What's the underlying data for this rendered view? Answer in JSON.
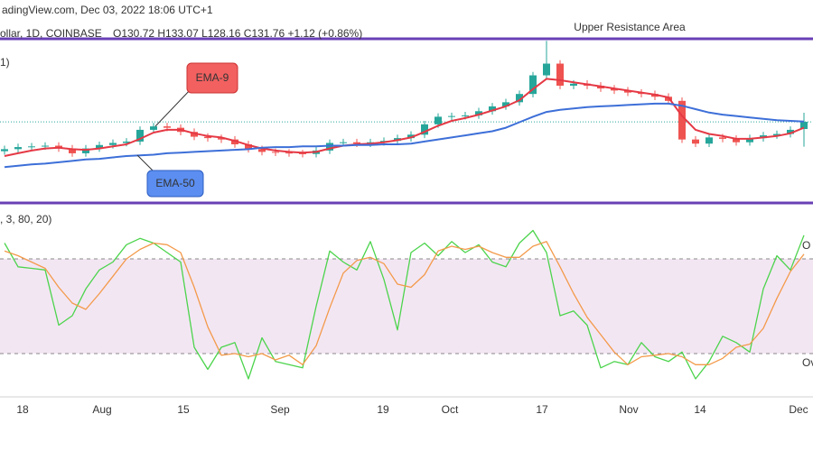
{
  "header": {
    "source": "adingView.com, Dec 03, 2022 18:06 UTC+1",
    "symbol": "ollar, 1D, COINBASE",
    "ohlc": "O130.72  H133.07  L128.16  C131.76  +1.12 (+0.86%)"
  },
  "chart_data": [
    {
      "type": "candlestick",
      "legend_text": "1)",
      "annotations": {
        "resistance": "Upper Resistance Area",
        "ema9": "EMA-9",
        "ema50": "EMA-50"
      },
      "ylim": [
        120,
        143.8
      ],
      "up_color": "#26a69a",
      "down_color": "#ef5350",
      "last_price": 131.76,
      "candles": {
        "open": [
          127.5,
          127.8,
          128.1,
          128.2,
          128.3,
          127.9,
          127.2,
          127.9,
          128.4,
          128.7,
          128.9,
          130.6,
          131.1,
          130.9,
          130.3,
          129.6,
          129.4,
          129.2,
          128.5,
          127.8,
          127.4,
          127.3,
          127.2,
          127.1,
          127.6,
          128.7,
          128.8,
          128.6,
          128.8,
          129.0,
          129.4,
          129.9,
          131.4,
          132.5,
          132.6,
          132.7,
          133.3,
          134.0,
          134.6,
          135.8,
          138.5,
          140.2,
          137.0,
          137.3,
          137.0,
          136.6,
          136.3,
          136.0,
          135.8,
          135.4,
          134.8,
          129.2,
          128.6,
          129.5,
          129.3,
          128.8,
          129.4,
          129.8,
          130.0,
          130.72
        ],
        "high": [
          128.3,
          128.6,
          128.7,
          128.8,
          128.8,
          128.4,
          128.4,
          128.9,
          129.2,
          129.4,
          131.1,
          131.6,
          131.6,
          131.4,
          130.8,
          130.1,
          129.9,
          129.7,
          129.0,
          128.3,
          127.9,
          127.8,
          127.7,
          128.1,
          129.2,
          129.3,
          129.3,
          129.3,
          129.5,
          129.9,
          130.4,
          131.9,
          133.0,
          133.1,
          133.2,
          133.8,
          134.5,
          135.1,
          136.3,
          139.0,
          143.5,
          140.7,
          137.8,
          137.8,
          137.5,
          137.1,
          136.8,
          136.5,
          136.3,
          135.9,
          135.3,
          129.7,
          130.0,
          130.0,
          129.8,
          129.9,
          130.3,
          130.5,
          131.1,
          133.07
        ],
        "low": [
          127.0,
          127.3,
          127.6,
          127.7,
          127.4,
          126.7,
          126.7,
          127.4,
          127.9,
          128.2,
          128.4,
          130.1,
          130.4,
          129.8,
          129.1,
          128.9,
          128.7,
          128.0,
          127.3,
          126.9,
          126.8,
          126.7,
          126.6,
          126.6,
          127.1,
          128.2,
          128.1,
          128.1,
          128.3,
          128.5,
          128.9,
          129.4,
          130.9,
          132.0,
          132.1,
          132.2,
          132.8,
          133.5,
          134.1,
          135.3,
          138.0,
          136.5,
          136.5,
          136.5,
          136.1,
          135.8,
          135.5,
          135.3,
          134.9,
          134.3,
          128.7,
          128.1,
          128.1,
          128.8,
          128.3,
          128.3,
          128.9,
          129.3,
          129.5,
          128.16
        ],
        "close": [
          127.8,
          128.1,
          128.2,
          128.3,
          127.9,
          127.2,
          127.9,
          128.4,
          128.7,
          128.9,
          130.6,
          131.1,
          130.9,
          130.3,
          129.6,
          129.4,
          129.2,
          128.5,
          127.8,
          127.4,
          127.3,
          127.2,
          127.1,
          127.6,
          128.7,
          128.8,
          128.6,
          128.8,
          129.0,
          129.4,
          129.9,
          131.4,
          132.5,
          132.6,
          132.7,
          133.3,
          134.0,
          134.6,
          135.8,
          138.5,
          140.2,
          137.0,
          137.3,
          137.0,
          136.6,
          136.3,
          136.0,
          135.8,
          135.4,
          134.8,
          129.2,
          128.6,
          129.5,
          129.3,
          128.8,
          129.4,
          129.8,
          130.0,
          130.6,
          131.76
        ]
      },
      "series": [
        {
          "color": "#e53945",
          "values": [
            126.8,
            127.2,
            127.6,
            127.9,
            128.0,
            127.8,
            127.7,
            127.9,
            128.2,
            128.5,
            129.3,
            130.2,
            130.6,
            130.6,
            130.1,
            129.7,
            129.5,
            129.0,
            128.4,
            127.9,
            127.6,
            127.4,
            127.3,
            127.4,
            127.9,
            128.3,
            128.5,
            128.6,
            128.8,
            129.1,
            129.5,
            130.3,
            131.2,
            131.9,
            132.3,
            132.8,
            133.4,
            134.0,
            134.9,
            136.5,
            138.0,
            137.8,
            137.5,
            137.2,
            136.9,
            136.6,
            136.3,
            136.0,
            135.7,
            135.3,
            132.6,
            130.6,
            130.0,
            129.7,
            129.3,
            129.3,
            129.5,
            129.7,
            130.1,
            130.9
          ]
        },
        {
          "color": "#3d6fd8",
          "values": [
            125.2,
            125.4,
            125.6,
            125.7,
            125.9,
            126.1,
            126.3,
            126.4,
            126.6,
            126.8,
            126.9,
            127.0,
            127.2,
            127.3,
            127.4,
            127.5,
            127.6,
            127.7,
            127.8,
            128.0,
            128.1,
            128.1,
            128.2,
            128.2,
            128.3,
            128.3,
            128.4,
            128.4,
            128.5,
            128.5,
            128.6,
            128.9,
            129.2,
            129.5,
            129.8,
            130.1,
            130.4,
            130.9,
            131.7,
            132.5,
            133.2,
            133.5,
            133.7,
            133.9,
            134.0,
            134.1,
            134.2,
            134.3,
            134.4,
            134.4,
            134.1,
            133.6,
            133.1,
            132.8,
            132.6,
            132.4,
            132.2,
            132.0,
            131.9,
            131.8
          ]
        }
      ]
    },
    {
      "type": "line",
      "legend_text": ", 3, 80, 20)",
      "ylim": [
        0,
        100
      ],
      "levels": [
        80,
        20
      ],
      "level_labels": [
        "O",
        "Ov"
      ],
      "band_color": "#f3e6f3",
      "x_labels": [
        "18",
        "Aug",
        "15",
        "Sep",
        "19",
        "Oct",
        "17",
        "Nov",
        "14",
        "Dec"
      ],
      "series": [
        {
          "color": "#4cd44c",
          "values": [
            90,
            75,
            74,
            73,
            38,
            44,
            61,
            73,
            78,
            89,
            93,
            90,
            84,
            78,
            24,
            10,
            24,
            27,
            4,
            30,
            15,
            13,
            11,
            50,
            85,
            78,
            73,
            91,
            67,
            35,
            84,
            90,
            82,
            91,
            84,
            89,
            78,
            75,
            90,
            98,
            84,
            44,
            47,
            38,
            11,
            15,
            13,
            27,
            18,
            15,
            21,
            4,
            15,
            31,
            27,
            21,
            61,
            82,
            73,
            95
          ]
        },
        {
          "color": "#f39a4a",
          "values": [
            85,
            82,
            78,
            74,
            62,
            52,
            48,
            58,
            69,
            80,
            86,
            90,
            89,
            84,
            62,
            37,
            19,
            20,
            18,
            20,
            16,
            19,
            13,
            25,
            49,
            71,
            79,
            81,
            77,
            64,
            62,
            70,
            85,
            88,
            86,
            88,
            84,
            81,
            81,
            88,
            91,
            75,
            58,
            43,
            32,
            21,
            13,
            18,
            19,
            20,
            18,
            13,
            13,
            17,
            24,
            26,
            36,
            55,
            72,
            83
          ]
        }
      ]
    }
  ]
}
